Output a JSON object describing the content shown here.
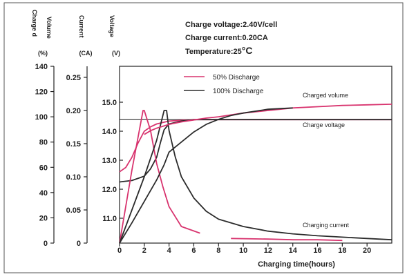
{
  "conditions": {
    "line1": "Charge voltage:2.40V/cell",
    "line2": "Charge current:0.20CA",
    "line3_prefix": "Temperature:25",
    "line3_unit": "°C"
  },
  "axes_headers": {
    "volume": {
      "name_a": "Charge d",
      "name_b": "Volume",
      "unit": "(%)"
    },
    "current": {
      "name": "Current",
      "unit": "(CA)"
    },
    "voltage": {
      "name": "Voltage",
      "unit": "(V)"
    }
  },
  "chart_data": {
    "type": "line",
    "xlabel": "Charging time(hours)",
    "xlim": [
      0,
      22
    ],
    "x_ticks": [
      0,
      2,
      4,
      6,
      8,
      10,
      12,
      14,
      16,
      18,
      20
    ],
    "x_tick_labels": [
      "0",
      "2",
      "4",
      "6",
      "8",
      "10",
      "12",
      "14",
      "16",
      "18",
      "20"
    ],
    "volume_axis": {
      "ylim": [
        0,
        140
      ],
      "ticks": [
        0,
        20,
        40,
        60,
        80,
        100,
        120,
        140
      ],
      "labels": [
        "0",
        "20",
        "40",
        "60",
        "80",
        "100",
        "120",
        "140"
      ]
    },
    "current_axis": {
      "ylim": [
        0,
        0.25
      ],
      "ticks": [
        0,
        0.05,
        0.1,
        0.15,
        0.2,
        0.25
      ],
      "labels": [
        "0",
        "0.05",
        "0.10",
        "0.15",
        "0.20",
        "0.25"
      ]
    },
    "voltage_axis": {
      "ylim": [
        10.0,
        15.0
      ],
      "ticks": [
        11.0,
        12.0,
        13.0,
        14.0,
        15.0
      ],
      "labels": [
        "11.0",
        "12.0",
        "13.0",
        "14.0",
        "15.0"
      ]
    },
    "legend": [
      {
        "name": "50% Discharge",
        "color": "#d8336e"
      },
      {
        "name": "100% Discharge",
        "color": "#2b2b2b"
      }
    ],
    "annotations": {
      "volume": "Charged volume",
      "voltage": "Charge voltage",
      "current": "Charging current"
    },
    "reference_line": {
      "axis": "voltage",
      "value": 14.4,
      "color": "#2b2b2b"
    },
    "series": [
      {
        "legend_index": 0,
        "axis": "voltage",
        "color": "#d8336e",
        "x": [
          0,
          0.5,
          1,
          1.5,
          2,
          2.5,
          3,
          4,
          6,
          8,
          10,
          12,
          14,
          16,
          18,
          20,
          22
        ],
        "y": [
          12.6,
          12.75,
          13.1,
          13.6,
          14.0,
          14.15,
          14.25,
          14.35,
          14.4,
          14.4,
          14.4,
          14.4,
          14.4,
          14.4,
          14.4,
          14.4,
          14.4
        ]
      },
      {
        "legend_index": 1,
        "axis": "voltage",
        "color": "#2b2b2b",
        "x": [
          0,
          1,
          2,
          2.5,
          3,
          3.3,
          3.6,
          4,
          5,
          6,
          7,
          8,
          9,
          10,
          12,
          14,
          16,
          18,
          20,
          22
        ],
        "y": [
          12.25,
          12.3,
          12.45,
          12.7,
          13.1,
          13.6,
          14.05,
          14.25,
          14.35,
          14.4,
          14.4,
          14.4,
          14.4,
          14.4,
          14.4,
          14.4,
          14.4,
          14.4,
          14.4,
          14.4
        ]
      },
      {
        "legend_index": 0,
        "axis": "current",
        "color": "#d8336e",
        "x": [
          0,
          1,
          1.9,
          2,
          2.5,
          3,
          3.5,
          4,
          5,
          6.5
        ],
        "y": [
          0.0,
          0.11,
          0.2,
          0.2,
          0.17,
          0.12,
          0.085,
          0.055,
          0.025,
          0.015
        ]
      },
      {
        "legend_index": 0,
        "axis": "current",
        "color": "#d8336e",
        "x": [
          9.0,
          12,
          14,
          16,
          18
        ],
        "y": [
          0.007,
          0.006,
          0.005,
          0.005,
          0.004
        ]
      },
      {
        "legend_index": 1,
        "axis": "current",
        "color": "#2b2b2b",
        "x": [
          0,
          1,
          2,
          3,
          3.6,
          3.8,
          4,
          4.5,
          5,
          6,
          7,
          8,
          10,
          12,
          14,
          16,
          18,
          20,
          22
        ],
        "y": [
          0.0,
          0.05,
          0.1,
          0.155,
          0.2,
          0.2,
          0.17,
          0.13,
          0.1,
          0.068,
          0.048,
          0.036,
          0.025,
          0.018,
          0.014,
          0.011,
          0.009,
          0.007,
          0.005
        ]
      },
      {
        "legend_index": 0,
        "axis": "volume",
        "color": "#d8336e",
        "x": [
          2,
          2.5,
          3,
          4,
          5,
          6,
          7,
          8,
          10,
          12,
          14,
          16,
          18,
          20,
          22
        ],
        "y": [
          86,
          89,
          91,
          94,
          96,
          97.5,
          99,
          100,
          103,
          105,
          107,
          108,
          109,
          109.5,
          110
        ]
      },
      {
        "legend_index": 1,
        "axis": "volume",
        "color": "#2b2b2b",
        "x": [
          0,
          1,
          2,
          3,
          3.6,
          4,
          5,
          6,
          7,
          8,
          9,
          10,
          12,
          14
        ],
        "y": [
          0,
          16,
          33,
          50,
          62,
          72,
          80,
          88,
          94,
          98,
          101,
          103,
          106,
          107
        ]
      }
    ]
  }
}
